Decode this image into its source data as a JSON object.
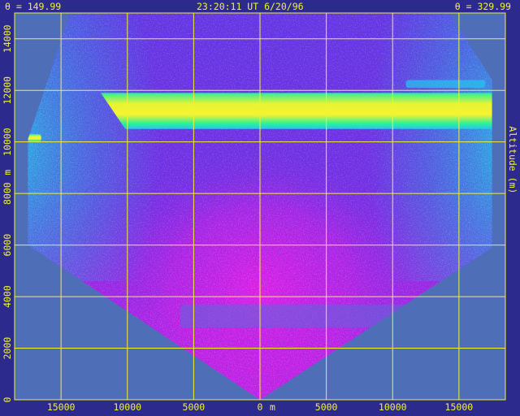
{
  "header": {
    "theta_left": "θ = 149.99",
    "timestamp": "23:20:11 UT   6/20/96",
    "theta_right": "θ = 329.99"
  },
  "chart_data": {
    "type": "heatmap",
    "xlabel": "m",
    "ylabel_right": "Altitude (m)",
    "ylabel_left": "m",
    "x_ticks": [
      {
        "value": -15000,
        "label": "15000"
      },
      {
        "value": -10000,
        "label": "10000"
      },
      {
        "value": -5000,
        "label": "5000"
      },
      {
        "value": 0,
        "label": "0"
      },
      {
        "value": 5000,
        "label": "5000"
      },
      {
        "value": 10000,
        "label": "10000"
      },
      {
        "value": 15000,
        "label": "15000"
      }
    ],
    "y_ticks": [
      0,
      2000,
      4000,
      6000,
      8000,
      10000,
      12000,
      14000
    ],
    "xlim": [
      -18500,
      18500
    ],
    "ylim": [
      0,
      15000
    ],
    "scan_left_theta_deg": 149.99,
    "scan_right_theta_deg": 329.99,
    "grid": true,
    "colors": {
      "background": "#2c2a8c",
      "outside_scan": "#4f6eb8",
      "grid": "#f2f238",
      "low_signal": "#27c6ee",
      "mid_signal": "#8a2ef0",
      "high_signal": "#f21af2",
      "cloud_core": "#f4f430",
      "cloud_edge": "#2bf09a"
    },
    "features": [
      {
        "name": "cloud layer",
        "altitude_range_m": [
          10500,
          11900
        ],
        "x_range_m": [
          -12000,
          17500
        ]
      },
      {
        "name": "low cloud streak",
        "altitude_range_m": [
          10000,
          10300
        ],
        "x_range_m": [
          -17500,
          -16500
        ]
      },
      {
        "name": "upper faint layer",
        "altitude_range_m": [
          12100,
          12400
        ],
        "x_range_m": [
          11000,
          17000
        ]
      },
      {
        "name": "boundary layer",
        "altitude_range_m": [
          2800,
          3700
        ],
        "x_range_m": [
          -6000,
          14000
        ]
      }
    ]
  }
}
